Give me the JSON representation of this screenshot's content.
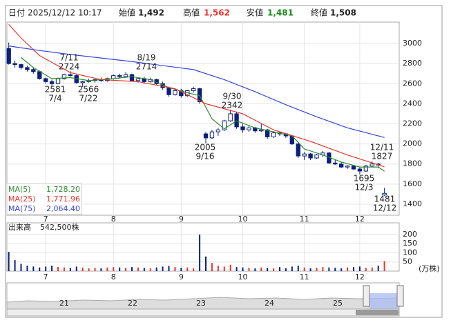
{
  "header": {
    "date_label": "日付",
    "datetime": "2025/12/12 10:17",
    "open_label": "始値",
    "open": "1,492",
    "high_label": "高値",
    "high": "1,562",
    "low_label": "安値",
    "low": "1,481",
    "close_label": "終値",
    "close": "1,508"
  },
  "chart_data": [
    {
      "type": "candlestick",
      "up_color": "#ffffff",
      "down_color": "#0b1f7a",
      "edge_color": "#0b1f7a",
      "xlim": [
        -0.3,
        63.4
      ],
      "xticks": [
        {
          "value": 6,
          "label": "7"
        },
        {
          "value": 17,
          "label": "8"
        },
        {
          "value": 28,
          "label": "9"
        },
        {
          "value": 38,
          "label": "10"
        },
        {
          "value": 48,
          "label": "11"
        },
        {
          "value": 57,
          "label": "12"
        }
      ],
      "ylim": [
        1290,
        3213
      ],
      "yticks": [
        1400,
        1600,
        1800,
        2000,
        2200,
        2400,
        2600,
        2800,
        3000
      ],
      "grid": true,
      "open": [
        2950,
        2800,
        2790,
        2760,
        2740,
        2720,
        2650,
        2620,
        2600,
        2650,
        2690,
        2680,
        2610,
        2620,
        2630,
        2640,
        2630,
        2650,
        2680,
        2670,
        2690,
        2630,
        2650,
        2620,
        2640,
        2600,
        2560,
        2490,
        2530,
        2480,
        2530,
        2550,
        2100,
        2060,
        2120,
        2140,
        2230,
        2300,
        2170,
        2140,
        2160,
        2130,
        2140,
        2070,
        2110,
        2100,
        2080,
        2000,
        1880,
        1900,
        1860,
        1890,
        1910,
        1810,
        1800,
        1770,
        1780,
        1750,
        1730,
        1780,
        1800,
        1492
      ],
      "high": [
        3010,
        2830,
        2800,
        2780,
        2760,
        2730,
        2660,
        2640,
        2660,
        2700,
        2724,
        2690,
        2630,
        2650,
        2650,
        2660,
        2660,
        2690,
        2700,
        2714,
        2700,
        2660,
        2670,
        2660,
        2650,
        2620,
        2570,
        2540,
        2550,
        2540,
        2570,
        2560,
        2120,
        2140,
        2160,
        2240,
        2342,
        2320,
        2200,
        2180,
        2170,
        2200,
        2150,
        2120,
        2120,
        2110,
        2090,
        2010,
        1920,
        1910,
        1900,
        1930,
        1920,
        1840,
        1820,
        1790,
        1790,
        1770,
        1790,
        1827,
        1810,
        1562
      ],
      "low": [
        2790,
        2760,
        2740,
        2720,
        2700,
        2640,
        2600,
        2581,
        2595,
        2640,
        2670,
        2600,
        2566,
        2610,
        2610,
        2620,
        2620,
        2640,
        2650,
        2660,
        2620,
        2610,
        2600,
        2610,
        2590,
        2540,
        2470,
        2480,
        2460,
        2470,
        2510,
        2400,
        2005,
        2050,
        2080,
        2130,
        2220,
        2150,
        2110,
        2120,
        2110,
        2120,
        2050,
        2060,
        2080,
        2060,
        1990,
        1860,
        1840,
        1840,
        1850,
        1870,
        1800,
        1790,
        1760,
        1750,
        1740,
        1695,
        1720,
        1770,
        1760,
        1481
      ],
      "close": [
        2800,
        2790,
        2760,
        2740,
        2720,
        2650,
        2620,
        2600,
        2650,
        2690,
        2680,
        2610,
        2620,
        2630,
        2640,
        2630,
        2650,
        2680,
        2670,
        2690,
        2630,
        2650,
        2620,
        2640,
        2600,
        2560,
        2490,
        2530,
        2480,
        2530,
        2550,
        2420,
        2060,
        2120,
        2140,
        2230,
        2300,
        2170,
        2140,
        2160,
        2130,
        2140,
        2070,
        2110,
        2100,
        2080,
        2000,
        1880,
        1900,
        1860,
        1890,
        1910,
        1810,
        1800,
        1770,
        1780,
        1750,
        1730,
        1780,
        1800,
        1790,
        1508
      ],
      "series": [
        {
          "name": "MA(5)",
          "current": "1,728.20",
          "color": "#2e8b2e",
          "x": [
            2,
            4,
            7,
            10,
            13,
            17,
            20,
            23,
            26,
            29,
            31,
            33,
            35,
            37,
            40,
            43,
            46,
            48,
            51,
            54,
            57,
            60,
            61
          ],
          "values": [
            2860,
            2760,
            2650,
            2660,
            2630,
            2650,
            2670,
            2640,
            2560,
            2510,
            2480,
            2250,
            2150,
            2230,
            2160,
            2120,
            2080,
            1950,
            1890,
            1820,
            1770,
            1770,
            1728
          ]
        },
        {
          "name": "MA(25)",
          "current": "1,771.96",
          "color": "#e8352b",
          "x": [
            0,
            2,
            5,
            10,
            15,
            21,
            27,
            32,
            38,
            43,
            49,
            55,
            61
          ],
          "values": [
            3190,
            3055,
            2880,
            2710,
            2640,
            2620,
            2550,
            2400,
            2300,
            2140,
            2025,
            1890,
            1772
          ]
        },
        {
          "name": "MA(75)",
          "current": "2,064.40",
          "color": "#3344dd",
          "x": [
            0,
            5,
            10,
            15,
            20,
            25,
            30,
            35,
            40,
            45,
            50,
            55,
            61
          ],
          "values": [
            2975,
            2930,
            2890,
            2855,
            2820,
            2780,
            2740,
            2640,
            2520,
            2390,
            2270,
            2160,
            2064
          ]
        }
      ],
      "annotations": [
        {
          "date": "7/11",
          "price": 2724
        },
        {
          "date": "8/19",
          "price": 2714
        },
        {
          "date": "7/4",
          "price": 2581
        },
        {
          "date": "7/22",
          "price": 2566
        },
        {
          "date": "9/30",
          "price": 2342
        },
        {
          "date": "9/16",
          "price": 2005
        },
        {
          "date": "12/11",
          "price": 1827
        },
        {
          "date": "12/3",
          "price": 1695
        },
        {
          "date": "12/12",
          "price": 1481
        }
      ]
    },
    {
      "type": "bar",
      "title": "出来高",
      "total": "542,500株",
      "unit": "(万株)",
      "up_color": "#e8352b",
      "down_color": "#0b1f7a",
      "ylim": [
        0,
        264
      ],
      "yticks": [
        50,
        100,
        150,
        200
      ],
      "values": [
        105,
        60,
        40,
        30,
        25,
        20,
        25,
        30,
        22,
        20,
        18,
        25,
        20,
        15,
        18,
        15,
        20,
        22,
        20,
        18,
        22,
        20,
        18,
        15,
        20,
        25,
        28,
        22,
        18,
        20,
        15,
        200,
        80,
        45,
        30,
        25,
        35,
        22,
        20,
        18,
        15,
        20,
        18,
        15,
        22,
        15,
        25,
        30,
        20,
        15,
        18,
        22,
        20,
        18,
        15,
        20,
        22,
        25,
        18,
        20,
        30,
        55
      ]
    }
  ],
  "navigator": {
    "labels": [
      "21",
      "22",
      "23",
      "24",
      "25"
    ]
  }
}
